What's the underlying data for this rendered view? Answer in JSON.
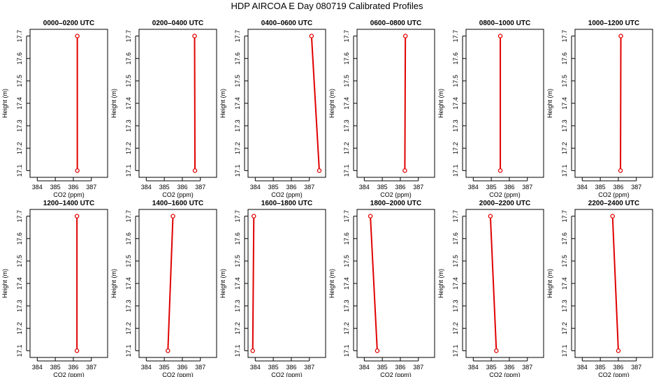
{
  "title": "HDP AIRCOA E  Day 080719  Calibrated Profiles",
  "colors": {
    "profile": "#e00000",
    "axis": "#000000"
  },
  "chart_data": [
    {
      "type": "line",
      "title": "0000–0200 UTC",
      "xlabel": "CO2 (ppm)",
      "ylabel": "Height (m)",
      "xlim": [
        383.6,
        387.9
      ],
      "ylim": [
        17.07,
        17.73
      ],
      "xticks": [
        384,
        385,
        386,
        387
      ],
      "yticks": [
        17.1,
        17.2,
        17.3,
        17.4,
        17.5,
        17.6,
        17.7
      ],
      "series": [
        {
          "x": [
            386.22,
            386.22
          ],
          "y": [
            17.1,
            17.7
          ]
        }
      ]
    },
    {
      "type": "line",
      "title": "0200–0400 UTC",
      "xlabel": "CO2 (ppm)",
      "ylabel": "Height (m)",
      "xlim": [
        383.6,
        387.9
      ],
      "ylim": [
        17.07,
        17.73
      ],
      "xticks": [
        384,
        385,
        386,
        387
      ],
      "yticks": [
        17.1,
        17.2,
        17.3,
        17.4,
        17.5,
        17.6,
        17.7
      ],
      "series": [
        {
          "x": [
            386.7,
            386.68
          ],
          "y": [
            17.1,
            17.7
          ]
        }
      ]
    },
    {
      "type": "line",
      "title": "0400–0600 UTC",
      "xlabel": "CO2 (ppm)",
      "ylabel": "Height (m)",
      "xlim": [
        383.6,
        387.9
      ],
      "ylim": [
        17.07,
        17.73
      ],
      "xticks": [
        384,
        385,
        386,
        387
      ],
      "yticks": [
        17.1,
        17.2,
        17.3,
        17.4,
        17.5,
        17.6,
        17.7
      ],
      "series": [
        {
          "x": [
            387.55,
            387.12
          ],
          "y": [
            17.1,
            17.7
          ]
        }
      ]
    },
    {
      "type": "line",
      "title": "0600–0800 UTC",
      "xlabel": "CO2 (ppm)",
      "ylabel": "Height (m)",
      "xlim": [
        383.6,
        387.9
      ],
      "ylim": [
        17.07,
        17.73
      ],
      "xticks": [
        384,
        385,
        386,
        387
      ],
      "yticks": [
        17.1,
        17.2,
        17.3,
        17.4,
        17.5,
        17.6,
        17.7
      ],
      "series": [
        {
          "x": [
            386.25,
            386.28
          ],
          "y": [
            17.1,
            17.7
          ]
        }
      ]
    },
    {
      "type": "line",
      "title": "0800–1000 UTC",
      "xlabel": "CO2 (ppm)",
      "ylabel": "Height (m)",
      "xlim": [
        383.6,
        387.9
      ],
      "ylim": [
        17.07,
        17.73
      ],
      "xticks": [
        384,
        385,
        386,
        387
      ],
      "yticks": [
        17.1,
        17.2,
        17.3,
        17.4,
        17.5,
        17.6,
        17.7
      ],
      "series": [
        {
          "x": [
            385.5,
            385.5
          ],
          "y": [
            17.1,
            17.7
          ]
        }
      ]
    },
    {
      "type": "line",
      "title": "1000–1200 UTC",
      "xlabel": "CO2 (ppm)",
      "ylabel": "Height (m)",
      "xlim": [
        383.6,
        387.9
      ],
      "ylim": [
        17.07,
        17.73
      ],
      "xticks": [
        384,
        385,
        386,
        387
      ],
      "yticks": [
        17.1,
        17.2,
        17.3,
        17.4,
        17.5,
        17.6,
        17.7
      ],
      "series": [
        {
          "x": [
            386.12,
            386.14
          ],
          "y": [
            17.1,
            17.7
          ]
        }
      ]
    },
    {
      "type": "line",
      "title": "1200–1400 UTC",
      "xlabel": "CO2 (ppm)",
      "ylabel": "Height (m)",
      "xlim": [
        383.6,
        387.9
      ],
      "ylim": [
        17.07,
        17.73
      ],
      "xticks": [
        384,
        385,
        386,
        387
      ],
      "yticks": [
        17.1,
        17.2,
        17.3,
        17.4,
        17.5,
        17.6,
        17.7
      ],
      "series": [
        {
          "x": [
            386.2,
            386.2
          ],
          "y": [
            17.1,
            17.7
          ]
        }
      ]
    },
    {
      "type": "line",
      "title": "1400–1600 UTC",
      "xlabel": "CO2 (ppm)",
      "ylabel": "Height (m)",
      "xlim": [
        383.6,
        387.9
      ],
      "ylim": [
        17.07,
        17.73
      ],
      "xticks": [
        384,
        385,
        386,
        387
      ],
      "yticks": [
        17.1,
        17.2,
        17.3,
        17.4,
        17.5,
        17.6,
        17.7
      ],
      "series": [
        {
          "x": [
            385.2,
            385.48
          ],
          "y": [
            17.1,
            17.7
          ]
        }
      ]
    },
    {
      "type": "line",
      "title": "1600–1800 UTC",
      "xlabel": "CO2 (ppm)",
      "ylabel": "Height (m)",
      "xlim": [
        383.6,
        387.9
      ],
      "ylim": [
        17.07,
        17.73
      ],
      "xticks": [
        384,
        385,
        386,
        387
      ],
      "yticks": [
        17.1,
        17.2,
        17.3,
        17.4,
        17.5,
        17.6,
        17.7
      ],
      "series": [
        {
          "x": [
            383.86,
            383.92
          ],
          "y": [
            17.1,
            17.7
          ]
        }
      ]
    },
    {
      "type": "line",
      "title": "1800–2000 UTC",
      "xlabel": "CO2 (ppm)",
      "ylabel": "Height (m)",
      "xlim": [
        383.6,
        387.9
      ],
      "ylim": [
        17.07,
        17.73
      ],
      "xticks": [
        384,
        385,
        386,
        387
      ],
      "yticks": [
        17.1,
        17.2,
        17.3,
        17.4,
        17.5,
        17.6,
        17.7
      ],
      "series": [
        {
          "x": [
            384.72,
            384.34
          ],
          "y": [
            17.1,
            17.7
          ]
        }
      ]
    },
    {
      "type": "line",
      "title": "2000–2200 UTC",
      "xlabel": "CO2 (ppm)",
      "ylabel": "Height (m)",
      "xlim": [
        383.6,
        387.9
      ],
      "ylim": [
        17.07,
        17.73
      ],
      "xticks": [
        384,
        385,
        386,
        387
      ],
      "yticks": [
        17.1,
        17.2,
        17.3,
        17.4,
        17.5,
        17.6,
        17.7
      ],
      "series": [
        {
          "x": [
            385.28,
            384.95
          ],
          "y": [
            17.1,
            17.7
          ]
        }
      ]
    },
    {
      "type": "line",
      "title": "2200–2400 UTC",
      "xlabel": "CO2 (ppm)",
      "ylabel": "Height (m)",
      "xlim": [
        383.6,
        387.9
      ],
      "ylim": [
        17.07,
        17.73
      ],
      "xticks": [
        384,
        385,
        386,
        387
      ],
      "yticks": [
        17.1,
        17.2,
        17.3,
        17.4,
        17.5,
        17.6,
        17.7
      ],
      "series": [
        {
          "x": [
            386.0,
            385.68
          ],
          "y": [
            17.1,
            17.7
          ]
        }
      ]
    }
  ]
}
